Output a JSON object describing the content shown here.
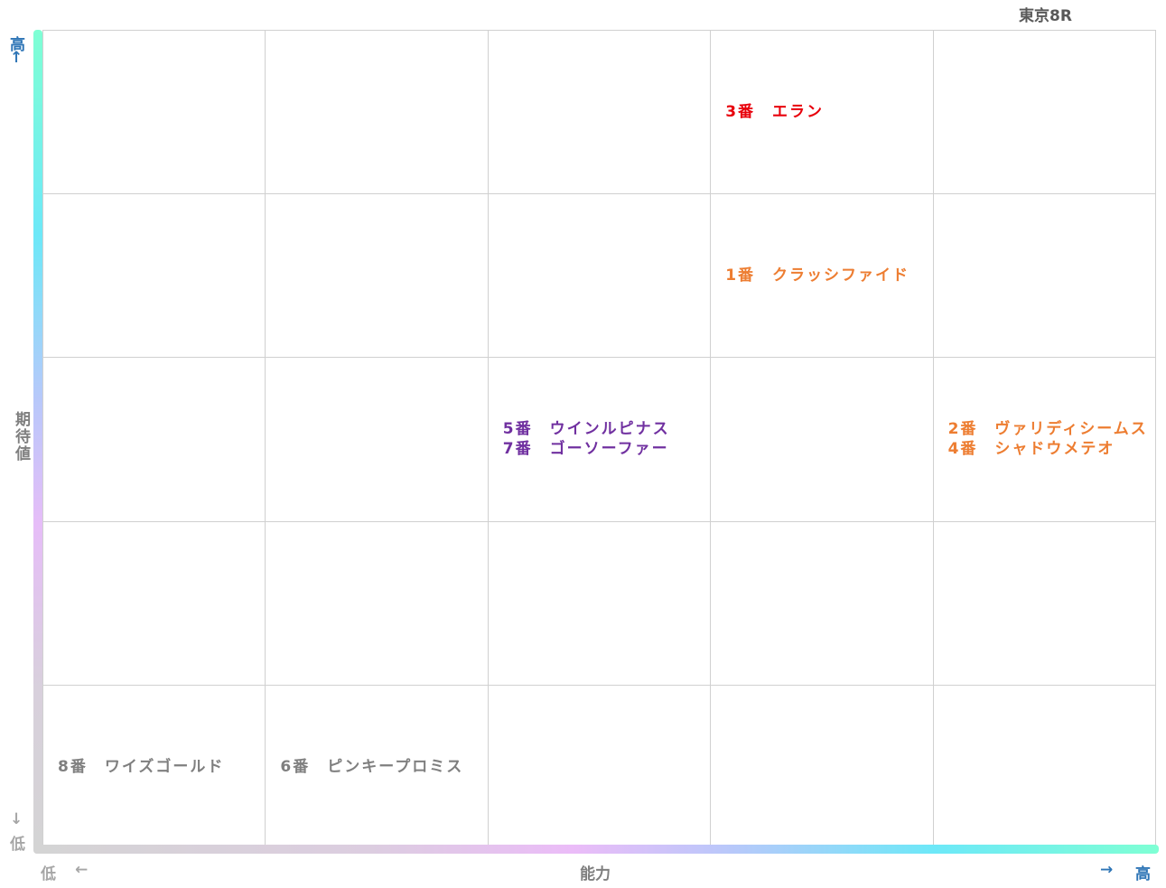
{
  "title": "東京8R",
  "y_axis": {
    "high": "高",
    "high_arrow": "↑",
    "label": "期待値",
    "low_arrow": "↓",
    "low": "低"
  },
  "x_axis": {
    "low": "低",
    "low_arrow": "←",
    "label": "能力",
    "high_arrow": "→",
    "high": "高"
  },
  "grid": {
    "rows": [
      [
        [],
        [],
        [],
        [
          {
            "text": "3番　エラン",
            "color": "#e8000b"
          }
        ],
        []
      ],
      [
        [],
        [],
        [],
        [
          {
            "text": "1番　クラッシファイド",
            "color": "#ed7d31"
          }
        ],
        []
      ],
      [
        [],
        [],
        [
          {
            "text": "5番　ウインルピナス",
            "color": "#7030a0"
          },
          {
            "text": "7番　ゴーソーファー",
            "color": "#7030a0"
          }
        ],
        [],
        [
          {
            "text": "2番　ヴァリディシームス",
            "color": "#ed7d31"
          },
          {
            "text": "4番　シャドウメテオ",
            "color": "#ed7d31"
          }
        ]
      ],
      [
        [],
        [],
        [],
        [],
        []
      ],
      [
        [
          {
            "text": "8番　ワイズゴールド",
            "color": "#7f7f7f"
          }
        ],
        [
          {
            "text": "6番　ピンキープロミス",
            "color": "#7f7f7f"
          }
        ],
        [],
        [],
        []
      ]
    ]
  }
}
